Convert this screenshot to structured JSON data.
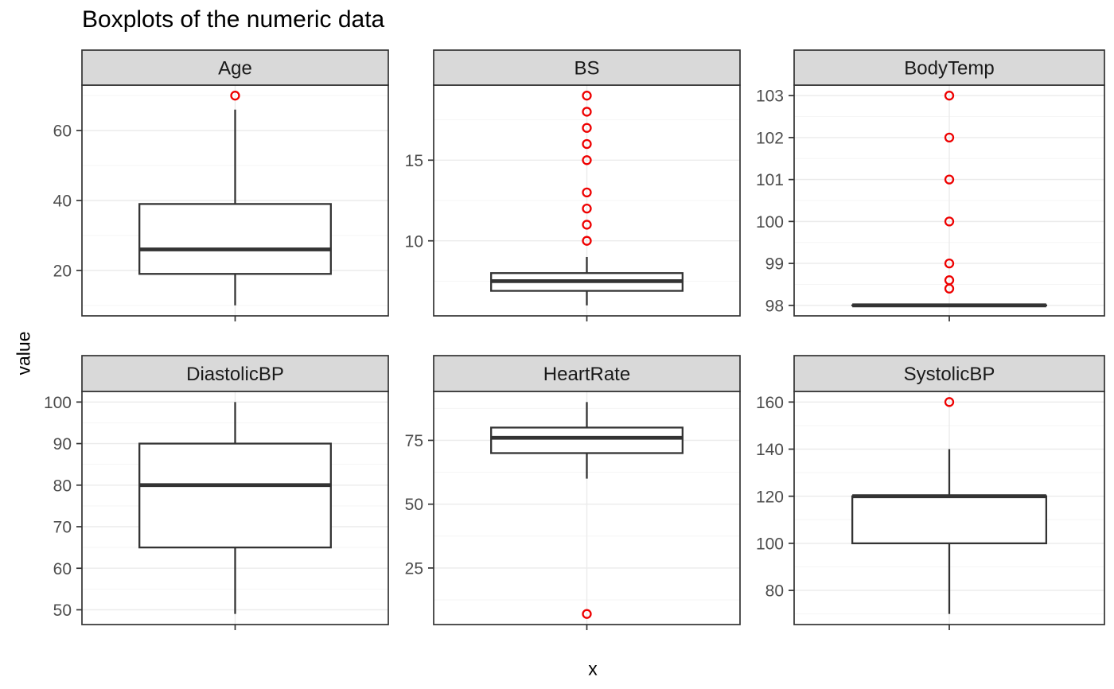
{
  "chart_data": {
    "type": "boxplot",
    "title": "Boxplots of the numeric data",
    "xlabel": "x",
    "ylabel": "value",
    "facet_layout": "2 rows x 3 columns, free y scales",
    "grid": "on",
    "legend": "none",
    "colors": {
      "box_stroke": "#333333",
      "box_fill": "#FFFFFF",
      "outlier": "#EE0000",
      "strip_bg": "#D9D9D9",
      "strip_border": "#333333",
      "strip_text": "#1A1A1A",
      "panel_border": "#333333",
      "panel_bg": "#FFFFFF",
      "grid_major": "#EBEBEB",
      "grid_minor": "#F5F5F5",
      "axis_text": "#4D4D4D",
      "axis_tick": "#333333",
      "title_text": "#000000"
    },
    "facets": [
      {
        "label": "Age",
        "ylim": [
          7,
          73
        ],
        "major_ticks": [
          20,
          40,
          60
        ],
        "minor_ticks": [
          10,
          30,
          50,
          70
        ],
        "box": {
          "lower_whisker": 10,
          "q1": 19,
          "median": 26,
          "q3": 39,
          "upper_whisker": 66
        },
        "outliers": [
          70
        ]
      },
      {
        "label": "BS",
        "ylim": [
          5.35,
          19.65
        ],
        "major_ticks": [
          10,
          15
        ],
        "minor_ticks": [
          7.5,
          12.5,
          17.5
        ],
        "box": {
          "lower_whisker": 6,
          "q1": 6.9,
          "median": 7.5,
          "q3": 8,
          "upper_whisker": 9
        },
        "outliers": [
          10,
          11,
          12,
          13,
          15,
          16,
          17,
          18,
          19
        ]
      },
      {
        "label": "BodyTemp",
        "ylim": [
          97.75,
          103.25
        ],
        "major_ticks": [
          98,
          99,
          100,
          101,
          102,
          103
        ],
        "minor_ticks": [
          98.5,
          99.5,
          100.5,
          101.5,
          102.5
        ],
        "box": {
          "lower_whisker": 98,
          "q1": 98,
          "median": 98,
          "q3": 98,
          "upper_whisker": 98
        },
        "outliers": [
          98.4,
          98.6,
          99,
          100,
          101,
          102,
          103
        ]
      },
      {
        "label": "DiastolicBP",
        "ylim": [
          46.45,
          102.55
        ],
        "major_ticks": [
          50,
          60,
          70,
          80,
          90,
          100
        ],
        "minor_ticks": [
          55,
          65,
          75,
          85,
          95
        ],
        "box": {
          "lower_whisker": 49,
          "q1": 65,
          "median": 80,
          "q3": 90,
          "upper_whisker": 100
        },
        "outliers": []
      },
      {
        "label": "HeartRate",
        "ylim": [
          2.85,
          94.15
        ],
        "major_ticks": [
          25,
          50,
          75
        ],
        "minor_ticks": [
          12.5,
          37.5,
          62.5,
          87.5
        ],
        "box": {
          "lower_whisker": 60,
          "q1": 70,
          "median": 76,
          "q3": 80,
          "upper_whisker": 90
        },
        "outliers": [
          7
        ]
      },
      {
        "label": "SystolicBP",
        "ylim": [
          65.5,
          164.5
        ],
        "major_ticks": [
          80,
          100,
          120,
          140,
          160
        ],
        "minor_ticks": [
          70,
          90,
          110,
          130,
          150
        ],
        "box": {
          "lower_whisker": 70,
          "q1": 100,
          "median": 120,
          "q3": 120,
          "upper_whisker": 140
        },
        "outliers": [
          160
        ]
      }
    ]
  }
}
